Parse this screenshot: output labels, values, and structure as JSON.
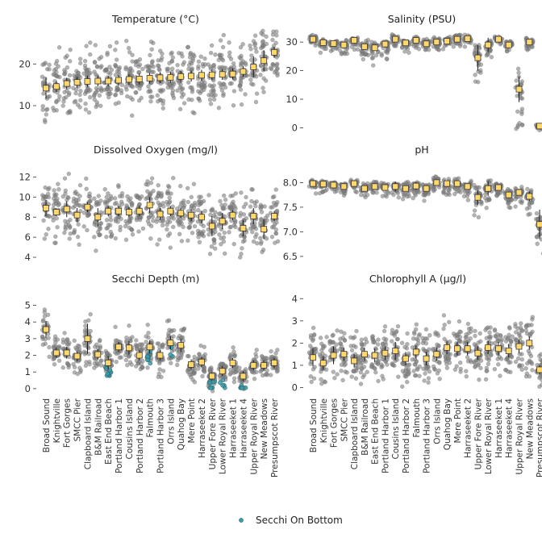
{
  "legend": {
    "label": "Secchi On Bottom",
    "color": "#3d9aa8"
  },
  "colors": {
    "jitter": "#7f7f7f",
    "mean_fill": "#ffd76b",
    "mean_stroke": "#3a3a3a",
    "error": "#1a1a1a"
  },
  "chart_data": [
    {
      "type": "scatter",
      "title": "Temperature (°C)",
      "ylim": [
        4,
        28
      ],
      "yticks": [
        10,
        20
      ],
      "categories": [
        "Broad Sound",
        "Knightville",
        "Fort Gorges",
        "SMCC Pier",
        "Clapboard Island",
        "B&M Railroad",
        "East End Beach",
        "Portland Harbor 1",
        "Cousins Island",
        "Portland Harbor 2",
        "Falmouth",
        "Portland Harbor 3",
        "Orrs Island",
        "Quahog Bay",
        "Mere Point",
        "Harraseeket 2",
        "Upper Fore River",
        "Lower Royal River",
        "Harraseeket 1",
        "Harraseeket 4",
        "Upper Royal River",
        "New Meadows",
        "Presumpscot River"
      ],
      "values": [
        14.2,
        14.6,
        15.3,
        15.6,
        15.8,
        15.9,
        15.9,
        16.1,
        16.3,
        16.4,
        16.6,
        16.7,
        16.8,
        17.0,
        17.1,
        17.3,
        17.4,
        17.5,
        17.6,
        18.2,
        19.3,
        20.8,
        22.8
      ],
      "spread": [
        4.5,
        4.5,
        4.5,
        4.5,
        4.5,
        4.5,
        4.5,
        4.5,
        4.5,
        4.5,
        4.5,
        4.5,
        4.5,
        4.5,
        4.5,
        4.5,
        4.5,
        4.5,
        4.5,
        4.5,
        4.5,
        4.5,
        3.5
      ],
      "ci": [
        2.5,
        1.3,
        1.4,
        1.3,
        1.3,
        1.3,
        1.3,
        1.3,
        1.3,
        1.3,
        1.3,
        1.3,
        1.3,
        1.3,
        1.3,
        1.3,
        1.3,
        1.3,
        1.3,
        1.3,
        2.5,
        2.5,
        1.3
      ]
    },
    {
      "type": "scatter",
      "title": "Salinity (PSU)",
      "ylim": [
        -1,
        34
      ],
      "yticks": [
        0,
        10,
        20,
        30
      ],
      "categories": [
        "Broad Sound",
        "Knightville",
        "Fort Gorges",
        "SMCC Pier",
        "Clapboard Island",
        "B&M Railroad",
        "East End Beach",
        "Portland Harbor 1",
        "Cousins Island",
        "Portland Harbor 2",
        "Falmouth",
        "Portland Harbor 3",
        "Orrs Island",
        "Quahog Bay",
        "Mere Point",
        "Harraseeket 2",
        "Upper Fore River",
        "Lower Royal River",
        "Harraseeket 1",
        "Harraseeket 4",
        "Upper Royal River",
        "New Meadows",
        "Presumpscot River"
      ],
      "values": [
        31.0,
        29.8,
        29.5,
        29.0,
        30.6,
        28.4,
        28.0,
        29.3,
        31.0,
        29.7,
        30.6,
        29.4,
        30.0,
        30.3,
        31.0,
        31.2,
        24.5,
        29.0,
        31.0,
        29.0,
        13.5,
        30.0,
        0.6
      ],
      "spread": [
        1.8,
        1.8,
        1.8,
        1.8,
        1.8,
        3.0,
        3.0,
        3.0,
        1.8,
        1.8,
        1.8,
        1.8,
        1.8,
        1.8,
        1.8,
        1.8,
        7.0,
        3.0,
        1.8,
        1.8,
        9.0,
        1.8,
        0.7
      ],
      "ci": [
        1.0,
        1.0,
        1.0,
        1.0,
        1.0,
        1.0,
        1.0,
        1.0,
        1.0,
        1.0,
        1.0,
        1.0,
        1.0,
        1.0,
        1.0,
        1.0,
        4.5,
        2.5,
        1.0,
        1.0,
        4.5,
        1.0,
        0.3
      ]
    },
    {
      "type": "scatter",
      "title": "Dissolved Oxygen (mg/l)",
      "ylim": [
        3.6,
        13.4
      ],
      "yticks": [
        4,
        6,
        8,
        10,
        12
      ],
      "categories": [
        "Broad Sound",
        "Knightville",
        "Fort Gorges",
        "SMCC Pier",
        "Clapboard Island",
        "B&M Railroad",
        "East End Beach",
        "Portland Harbor 1",
        "Cousins Island",
        "Portland Harbor 2",
        "Falmouth",
        "Portland Harbor 3",
        "Orrs Island",
        "Quahog Bay",
        "Mere Point",
        "Harraseeket 2",
        "Upper Fore River",
        "Lower Royal River",
        "Harraseeket 1",
        "Harraseeket 4",
        "Upper Royal River",
        "New Meadows",
        "Presumpscot River"
      ],
      "values": [
        8.9,
        8.5,
        8.8,
        8.2,
        9.0,
        8.0,
        8.6,
        8.6,
        8.5,
        8.6,
        9.2,
        8.3,
        8.6,
        8.4,
        8.2,
        8.0,
        7.1,
        7.6,
        8.2,
        6.9,
        8.1,
        6.8,
        8.1
      ],
      "spread": [
        1.7,
        1.7,
        1.7,
        1.7,
        1.7,
        1.7,
        1.7,
        1.7,
        1.7,
        1.7,
        1.7,
        1.7,
        1.7,
        1.7,
        1.7,
        1.7,
        1.7,
        1.7,
        1.7,
        1.7,
        1.7,
        1.7,
        1.7
      ],
      "ci": [
        0.8,
        0.4,
        0.8,
        0.7,
        0.5,
        0.9,
        0.5,
        0.5,
        0.5,
        0.5,
        0.8,
        0.6,
        0.5,
        0.5,
        0.6,
        0.6,
        1.0,
        0.8,
        0.5,
        0.8,
        0.8,
        1.0,
        0.5
      ]
    },
    {
      "type": "scatter",
      "title": "pH",
      "ylim": [
        6.4,
        8.4
      ],
      "yticks": [
        6.5,
        7.0,
        7.5,
        8.0
      ],
      "categories": [
        "Broad Sound",
        "Knightville",
        "Fort Gorges",
        "SMCC Pier",
        "Clapboard Island",
        "B&M Railroad",
        "East End Beach",
        "Portland Harbor 1",
        "Cousins Island",
        "Portland Harbor 2",
        "Falmouth",
        "Portland Harbor 3",
        "Orrs Island",
        "Quahog Bay",
        "Mere Point",
        "Harraseeket 2",
        "Upper Fore River",
        "Lower Royal River",
        "Harraseeket 1",
        "Harraseeket 4",
        "Upper Royal River",
        "New Meadows",
        "Presumpscot River"
      ],
      "values": [
        7.98,
        7.97,
        7.95,
        7.92,
        7.98,
        7.88,
        7.92,
        7.9,
        7.92,
        7.88,
        7.93,
        7.88,
        8.0,
        7.98,
        7.98,
        7.92,
        7.7,
        7.88,
        7.9,
        7.75,
        7.8,
        7.72,
        7.15
      ],
      "spread": [
        0.1,
        0.1,
        0.1,
        0.1,
        0.1,
        0.14,
        0.14,
        0.14,
        0.14,
        0.14,
        0.14,
        0.14,
        0.14,
        0.14,
        0.14,
        0.14,
        0.3,
        0.22,
        0.14,
        0.15,
        0.15,
        0.2,
        0.3
      ],
      "ci": [
        0.05,
        0.05,
        0.05,
        0.05,
        0.05,
        0.05,
        0.05,
        0.05,
        0.1,
        0.05,
        0.08,
        0.05,
        0.05,
        0.05,
        0.05,
        0.05,
        0.15,
        0.15,
        0.05,
        0.06,
        0.06,
        0.1,
        0.3
      ]
    },
    {
      "type": "scatter",
      "title": "Secchi Depth (m)",
      "ylim": [
        -0.2,
        5.8
      ],
      "yticks": [
        0,
        1,
        2,
        3,
        4,
        5
      ],
      "categories": [
        "Broad Sound",
        "Knightville",
        "Fort Gorges",
        "SMCC Pier",
        "Clapboard Island",
        "B&M Railroad",
        "East End Beach",
        "Portland Harbor 1",
        "Cousins Island",
        "Portland Harbor 2",
        "Falmouth",
        "Portland Harbor 3",
        "Orrs Island",
        "Quahog Bay",
        "Mere Point",
        "Harraseeket 2",
        "Upper Fore River",
        "Lower Royal River",
        "Harraseeket 1",
        "Harraseeket 4",
        "Upper Royal River",
        "New Meadows",
        "Presumpscot River"
      ],
      "values": [
        3.55,
        2.15,
        2.15,
        1.95,
        3.0,
        2.05,
        1.55,
        2.5,
        2.45,
        2.0,
        2.5,
        2.0,
        2.75,
        2.6,
        1.45,
        1.6,
        0.75,
        1.05,
        1.55,
        0.75,
        1.4,
        1.4,
        1.55
      ],
      "spread": [
        0.8,
        0.5,
        0.6,
        0.6,
        0.9,
        0.6,
        0.5,
        0.6,
        0.7,
        0.6,
        0.7,
        0.6,
        0.7,
        0.7,
        0.6,
        0.5,
        0.4,
        0.5,
        0.6,
        0.4,
        0.5,
        0.5,
        0.5
      ],
      "ci": [
        0.5,
        0.3,
        0.35,
        0.3,
        0.9,
        0.3,
        0.4,
        0.3,
        0.4,
        0.3,
        0.4,
        0.3,
        0.4,
        0.4,
        0.3,
        0.3,
        0.25,
        0.3,
        0.3,
        0.3,
        0.3,
        0.3,
        0.3
      ],
      "bottom_counts": [
        0,
        0,
        0,
        0,
        0,
        0,
        10,
        0,
        0,
        0,
        8,
        0,
        3,
        0,
        0,
        0,
        9,
        5,
        0,
        7,
        0,
        0,
        0
      ]
    },
    {
      "type": "scatter",
      "title": "Chlorophyll A (µg/l)",
      "ylim": [
        -0.2,
        4.3
      ],
      "yticks": [
        0,
        1,
        2,
        3,
        4
      ],
      "categories": [
        "Broad Sound",
        "Knightville",
        "Fort Gorges",
        "SMCC Pier",
        "Clapboard Island",
        "B&M Railroad",
        "East End Beach",
        "Portland Harbor 1",
        "Cousins Island",
        "Portland Harbor 2",
        "Falmouth",
        "Portland Harbor 3",
        "Orrs Island",
        "Quahog Bay",
        "Mere Point",
        "Harraseeket 2",
        "Upper Fore River",
        "Lower Royal River",
        "Harraseeket 1",
        "Harraseeket 4",
        "Upper Royal River",
        "New Meadows",
        "Presumpscot River"
      ],
      "values": [
        1.35,
        1.1,
        1.45,
        1.5,
        1.2,
        1.5,
        1.45,
        1.55,
        1.65,
        1.3,
        1.6,
        1.3,
        1.5,
        1.8,
        1.75,
        1.75,
        1.55,
        1.8,
        1.75,
        1.65,
        1.85,
        2.0,
        0.8
      ],
      "spread": [
        0.7,
        0.7,
        0.7,
        0.7,
        0.7,
        0.7,
        0.7,
        0.7,
        0.7,
        0.7,
        0.7,
        0.7,
        0.7,
        0.7,
        0.7,
        0.7,
        0.7,
        0.7,
        0.7,
        0.7,
        0.7,
        0.8,
        0.4
      ],
      "ci": [
        0.4,
        0.3,
        0.4,
        0.3,
        0.3,
        0.3,
        0.3,
        0.3,
        0.4,
        0.3,
        0.3,
        0.3,
        0.3,
        0.3,
        0.3,
        0.3,
        0.3,
        0.3,
        0.3,
        0.3,
        0.3,
        0.3,
        0.2
      ]
    }
  ]
}
